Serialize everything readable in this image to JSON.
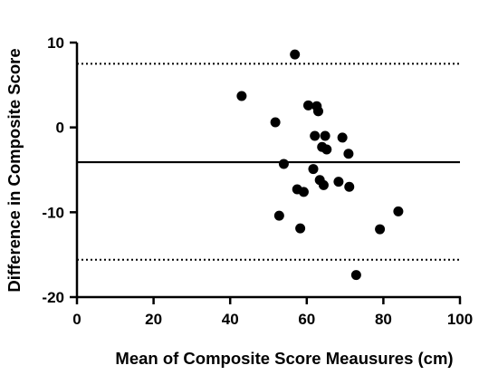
{
  "chart_data": {
    "type": "scatter",
    "title": "",
    "xlabel": "Mean of Composite Score Meausures (cm)",
    "ylabel": "Difference in Composite Score",
    "xlim": [
      0,
      100
    ],
    "ylim": [
      -20,
      10
    ],
    "xticks": [
      0,
      20,
      40,
      60,
      80,
      100
    ],
    "yticks": [
      -20,
      -10,
      0,
      10
    ],
    "grid": false,
    "legend": "none",
    "point_color": "#000000",
    "series": [
      {
        "points": [
          {
            "x": 43.0,
            "y": 3.7
          },
          {
            "x": 51.8,
            "y": 0.6
          },
          {
            "x": 52.8,
            "y": -10.4
          },
          {
            "x": 54.0,
            "y": -4.3
          },
          {
            "x": 56.9,
            "y": 8.6
          },
          {
            "x": 57.5,
            "y": -7.3
          },
          {
            "x": 58.3,
            "y": -11.9
          },
          {
            "x": 59.2,
            "y": -7.6
          },
          {
            "x": 60.4,
            "y": 2.6
          },
          {
            "x": 61.7,
            "y": -4.9
          },
          {
            "x": 62.1,
            "y": -1.0
          },
          {
            "x": 62.6,
            "y": 2.5
          },
          {
            "x": 63.0,
            "y": 1.9
          },
          {
            "x": 63.4,
            "y": -6.2
          },
          {
            "x": 64.0,
            "y": -2.3
          },
          {
            "x": 64.4,
            "y": -6.8
          },
          {
            "x": 64.8,
            "y": -1.0
          },
          {
            "x": 65.2,
            "y": -2.6
          },
          {
            "x": 68.3,
            "y": -6.4
          },
          {
            "x": 69.3,
            "y": -1.2
          },
          {
            "x": 70.9,
            "y": -3.1
          },
          {
            "x": 71.1,
            "y": -7.0
          },
          {
            "x": 72.9,
            "y": -17.4
          },
          {
            "x": 79.1,
            "y": -12.0
          },
          {
            "x": 83.9,
            "y": -9.9
          }
        ]
      }
    ],
    "reference_lines": [
      {
        "y": 7.5,
        "style": "dotted"
      },
      {
        "y": -4.1,
        "style": "solid"
      },
      {
        "y": -15.6,
        "style": "dotted"
      }
    ]
  }
}
